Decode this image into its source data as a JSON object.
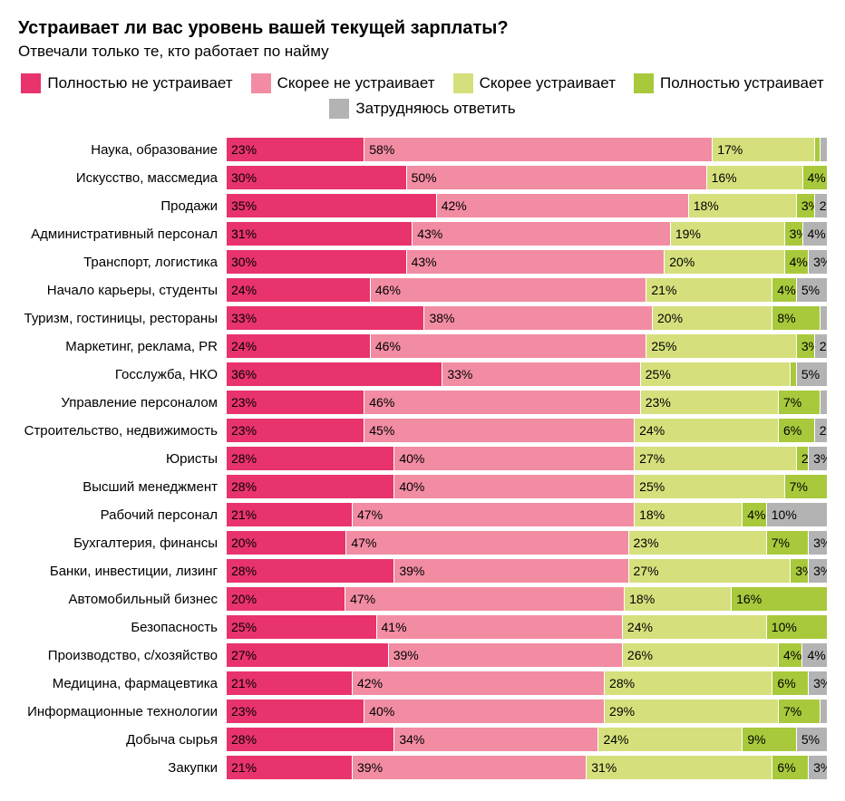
{
  "title": "Устраивает ли вас уровень вашей текущей зарплаты?",
  "subtitle": "Отвечали только те, кто работает по найму",
  "colors": {
    "s1": "#e8336d",
    "s2": "#f28ca3",
    "s3": "#d5e07c",
    "s4": "#a8c93b",
    "s5": "#b3b3b3"
  },
  "legend": [
    {
      "label": "Полностью не устраивает",
      "color_key": "s1"
    },
    {
      "label": "Скорее не устраивает",
      "color_key": "s2"
    },
    {
      "label": "Скорее устраивает",
      "color_key": "s3"
    },
    {
      "label": "Полностью устраивает",
      "color_key": "s4"
    },
    {
      "label": "Затрудняюсь ответить",
      "color_key": "s5"
    }
  ],
  "label_threshold_pct": 2,
  "rows": [
    {
      "label": "Наука, образование",
      "values": [
        23,
        58,
        17,
        1,
        1
      ]
    },
    {
      "label": "Искусство, массмедиа",
      "values": [
        30,
        50,
        16,
        4,
        0
      ]
    },
    {
      "label": "Продажи",
      "values": [
        35,
        42,
        18,
        3,
        2
      ]
    },
    {
      "label": "Административный персонал",
      "values": [
        31,
        43,
        19,
        3,
        4
      ]
    },
    {
      "label": "Транспорт, логистика",
      "values": [
        30,
        43,
        20,
        4,
        3
      ]
    },
    {
      "label": "Начало карьеры, студенты",
      "values": [
        24,
        46,
        21,
        4,
        5
      ]
    },
    {
      "label": "Туризм, гостиницы, рестораны",
      "values": [
        33,
        38,
        20,
        8,
        1
      ]
    },
    {
      "label": "Маркетинг, реклама, PR",
      "values": [
        24,
        46,
        25,
        3,
        2
      ]
    },
    {
      "label": "Госслужба, НКО",
      "values": [
        36,
        33,
        25,
        1,
        5
      ]
    },
    {
      "label": "Управление персоналом",
      "values": [
        23,
        46,
        23,
        7,
        1
      ]
    },
    {
      "label": "Строительство, недвижимость",
      "values": [
        23,
        45,
        24,
        6,
        2
      ]
    },
    {
      "label": "Юристы",
      "values": [
        28,
        40,
        27,
        2,
        3
      ]
    },
    {
      "label": "Высший менеджмент",
      "values": [
        28,
        40,
        25,
        7,
        0
      ]
    },
    {
      "label": "Рабочий персонал",
      "values": [
        21,
        47,
        18,
        4,
        10
      ]
    },
    {
      "label": "Бухгалтерия, финансы",
      "values": [
        20,
        47,
        23,
        7,
        3
      ]
    },
    {
      "label": "Банки, инвестиции, лизинг",
      "values": [
        28,
        39,
        27,
        3,
        3
      ]
    },
    {
      "label": "Автомобильный бизнес",
      "values": [
        20,
        47,
        18,
        16,
        0
      ]
    },
    {
      "label": "Безопасность",
      "values": [
        25,
        41,
        24,
        10,
        0
      ]
    },
    {
      "label": "Производство, с/хозяйство",
      "values": [
        27,
        39,
        26,
        4,
        4
      ]
    },
    {
      "label": "Медицина, фармацевтика",
      "values": [
        21,
        42,
        28,
        6,
        3
      ]
    },
    {
      "label": "Информационные технологии",
      "values": [
        23,
        40,
        29,
        7,
        1
      ]
    },
    {
      "label": "Добыча сырья",
      "values": [
        28,
        34,
        24,
        9,
        5
      ]
    },
    {
      "label": "Закупки",
      "values": [
        21,
        39,
        31,
        6,
        3
      ]
    }
  ]
}
